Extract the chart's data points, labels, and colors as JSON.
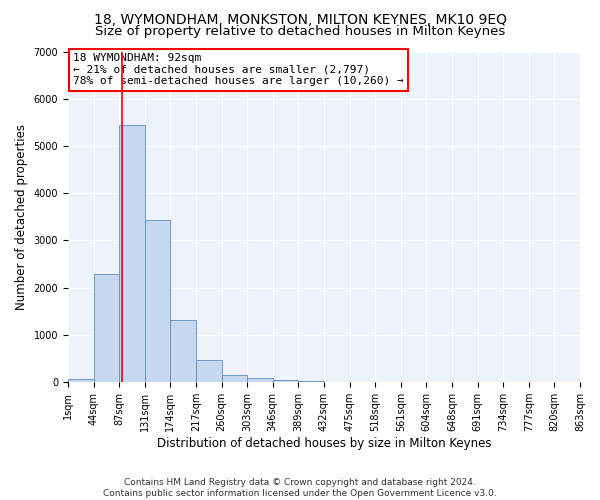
{
  "title": "18, WYMONDHAM, MONKSTON, MILTON KEYNES, MK10 9EQ",
  "subtitle": "Size of property relative to detached houses in Milton Keynes",
  "xlabel": "Distribution of detached houses by size in Milton Keynes",
  "ylabel": "Number of detached properties",
  "bin_labels": [
    "1sqm",
    "44sqm",
    "87sqm",
    "131sqm",
    "174sqm",
    "217sqm",
    "260sqm",
    "303sqm",
    "346sqm",
    "389sqm",
    "432sqm",
    "475sqm",
    "518sqm",
    "561sqm",
    "604sqm",
    "648sqm",
    "691sqm",
    "734sqm",
    "777sqm",
    "820sqm",
    "863sqm"
  ],
  "bar_values": [
    75,
    2300,
    5450,
    3430,
    1310,
    460,
    150,
    80,
    55,
    20,
    5,
    2,
    1,
    0,
    0,
    0,
    0,
    0,
    0,
    0
  ],
  "bar_color": "#c5d8f0",
  "bar_edge_color": "#5a8fc0",
  "annotation_box_text": "18 WYMONDHAM: 92sqm\n← 21% of detached houses are smaller (2,797)\n78% of semi-detached houses are larger (10,260) →",
  "annotation_line_color": "red",
  "annotation_box_edge_color": "red",
  "ylim": [
    0,
    7000
  ],
  "background_color": "#eef2fb",
  "footer_text": "Contains HM Land Registry data © Crown copyright and database right 2024.\nContains public sector information licensed under the Open Government Licence v3.0.",
  "title_fontsize": 10,
  "subtitle_fontsize": 9.5,
  "xlabel_fontsize": 8.5,
  "ylabel_fontsize": 8.5,
  "annotation_fontsize": 8,
  "tick_fontsize": 7,
  "footer_fontsize": 6.5
}
